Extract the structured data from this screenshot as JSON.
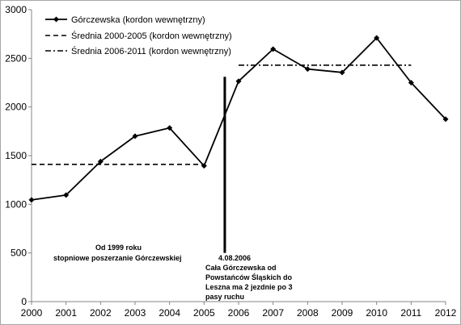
{
  "chart_data": {
    "type": "line",
    "x": [
      2000,
      2001,
      2002,
      2003,
      2004,
      2005,
      2006,
      2007,
      2008,
      2009,
      2010,
      2011,
      2012
    ],
    "series": [
      {
        "name": "Górczewska (kordon wewnętrzny)",
        "values": [
          1045,
          1095,
          1440,
          1700,
          1785,
          1395,
          2265,
          2595,
          2390,
          2355,
          2710,
          2250,
          1875
        ],
        "color": "#000000",
        "style": "solid-with-diamond-markers"
      }
    ],
    "averages": [
      {
        "name": "Średnia 2000-2005 (kordon wewnętrzny)",
        "value": 1410,
        "from": 2000,
        "to": 2005,
        "style": "dashed"
      },
      {
        "name": "Średnia 2006-2011 (kordon wewnętrzny)",
        "value": 2430,
        "from": 2006,
        "to": 2011,
        "style": "dash-dot"
      }
    ],
    "event_marker": {
      "x": 2005.6,
      "y_top": 2310,
      "y_bottom": 500
    },
    "annotations": [
      {
        "lines": [
          "Od 1999 roku",
          "stopniowe poszerzanie Górczewskiej"
        ]
      },
      {
        "lines": [
          "4.08.2006",
          "Cała Górczewska od",
          "Powstańców Śląskich do",
          "Leszna ma 2 jezdnie po 3",
          "pasy ruchu"
        ]
      }
    ],
    "ylim": [
      0,
      3000
    ],
    "yticks": [
      0,
      500,
      1000,
      1500,
      2000,
      2500,
      3000
    ],
    "xticks": [
      2000,
      2001,
      2002,
      2003,
      2004,
      2005,
      2006,
      2007,
      2008,
      2009,
      2010,
      2011,
      2012
    ],
    "grid": false,
    "legend": "top-left",
    "title": "",
    "xlabel": "",
    "ylabel": ""
  }
}
